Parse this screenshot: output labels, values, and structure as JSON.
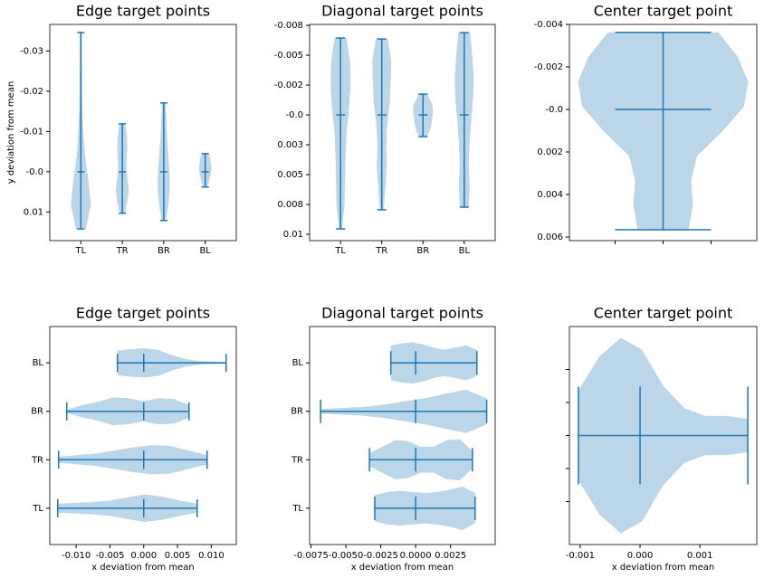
{
  "chart_data": [
    {
      "type": "violin",
      "orientation": "vertical",
      "title": "Edge target points",
      "ylabel": "y deviation from mean",
      "color": "#1f77b4",
      "categories": [
        "TL",
        "TR",
        "BR",
        "BL"
      ],
      "invert_y": true,
      "ylim": [
        -0.0366,
        0.0171
      ],
      "yticks": [
        -0.03,
        -0.02,
        -0.01,
        {
          "value": 0,
          "label": "-0.0"
        },
        0.01
      ],
      "violins": [
        {
          "min": -0.0346,
          "mean": 0,
          "max": 0.0142,
          "density": [
            0.1,
            0.1,
            0.12,
            0.15,
            0.25,
            0.4,
            0.75,
            1,
            0.5
          ]
        },
        {
          "min": -0.0119,
          "mean": 0,
          "max": 0.0103,
          "density": [
            0.3,
            0.45,
            0.5,
            0.45,
            0.4,
            0.55,
            0.65,
            0.5,
            0.25
          ]
        },
        {
          "min": -0.0171,
          "mean": 0,
          "max": 0.0121,
          "density": [
            0.2,
            0.25,
            0.3,
            0.4,
            0.5,
            0.6,
            0.6,
            0.45,
            0.2
          ]
        },
        {
          "min": -0.0045,
          "mean": 0,
          "max": 0.0038,
          "density": [
            0.3,
            0.5,
            0.55,
            0.6,
            0.6,
            0.55,
            0.45,
            0.35,
            0.2
          ]
        }
      ]
    },
    {
      "type": "violin",
      "orientation": "vertical",
      "title": "Diagonal target points",
      "color": "#1f77b4",
      "categories": [
        "TL",
        "TR",
        "BR",
        "BL"
      ],
      "invert_y": true,
      "ylim": [
        -0.00758,
        0.01053
      ],
      "yticks": [
        {
          "value": -0.0075,
          "label": "-0.008"
        },
        -0.005,
        {
          "value": -0.0025,
          "label": "-0.002"
        },
        {
          "value": 0,
          "label": "-0.0"
        },
        {
          "value": 0.0025,
          "label": "0.003"
        },
        0.005,
        {
          "value": 0.0075,
          "label": "0.008"
        },
        0.01
      ],
      "violins": [
        {
          "min": -0.00644,
          "mean": 0,
          "max": 0.00955,
          "density": [
            0.6,
            0.95,
            1,
            0.85,
            0.6,
            0.5,
            0.45,
            0.4,
            0.15
          ]
        },
        {
          "min": -0.00636,
          "mean": 0,
          "max": 0.00795,
          "density": [
            0.6,
            0.95,
            0.9,
            0.8,
            0.55,
            0.45,
            0.5,
            0.35,
            0.2
          ]
        },
        {
          "min": -0.00174,
          "mean": 0,
          "max": 0.00182,
          "density": [
            0.4,
            0.7,
            0.95,
            1,
            0.95,
            0.9,
            0.8,
            0.65,
            0.4
          ]
        },
        {
          "min": -0.00689,
          "mean": 0,
          "max": 0.00773,
          "density": [
            0.6,
            0.8,
            0.95,
            0.9,
            0.7,
            0.55,
            0.45,
            0.55,
            0.45
          ]
        }
      ]
    },
    {
      "type": "violin",
      "orientation": "vertical",
      "title": "Center target point",
      "color": "#1f77b4",
      "invert_y": true,
      "ylim": [
        -0.004,
        0.00617
      ],
      "yticks": [
        -0.004,
        -0.002,
        {
          "value": 0,
          "label": "-0.0"
        },
        0.002,
        0.004,
        0.006
      ],
      "violins": [
        {
          "min": -0.00362,
          "mean": 0,
          "max": 0.00566,
          "density": [
            0.65,
            0.88,
            1,
            0.95,
            0.7,
            0.4,
            0.33,
            0.35,
            0.3
          ]
        }
      ]
    },
    {
      "type": "violin",
      "orientation": "horizontal",
      "title": "Edge target points",
      "xlabel": "x deviation from mean",
      "color": "#1f77b4",
      "categories": [
        "TL",
        "TR",
        "BR",
        "BL"
      ],
      "xlim": [
        -0.0139,
        0.0137
      ],
      "xticks": [
        {
          "value": -0.01,
          "label": "-0.010"
        },
        -0.005,
        {
          "value": 0,
          "label": "0.000"
        },
        0.005,
        {
          "value": 0.01,
          "label": "0.010"
        }
      ],
      "violins": [
        {
          "min": -0.01273,
          "mean": 0,
          "max": 0.00791,
          "density": [
            0.3,
            0.35,
            0.4,
            0.5,
            0.7,
            0.9,
            0.75,
            0.5,
            0.3
          ]
        },
        {
          "min": -0.0126,
          "mean": 0,
          "max": 0.00938,
          "density": [
            0.2,
            0.3,
            0.4,
            0.6,
            0.8,
            0.95,
            0.9,
            0.6,
            0.3
          ]
        },
        {
          "min": -0.01139,
          "mean": 0,
          "max": 0.0067,
          "density": [
            0.1,
            0.4,
            0.6,
            0.9,
            0.85,
            0.65,
            0.85,
            0.8,
            0.4
          ]
        },
        {
          "min": -0.00389,
          "mean": 0,
          "max": 0.0122,
          "density": [
            0.8,
            0.9,
            0.95,
            0.85,
            0.5,
            0.25,
            0.12,
            0.08,
            0.05
          ]
        }
      ]
    },
    {
      "type": "violin",
      "orientation": "horizontal",
      "title": "Diagonal target points",
      "xlabel": "x deviation from mean",
      "color": "#1f77b4",
      "categories": [
        "TL",
        "TR",
        "BR",
        "BL"
      ],
      "xlim": [
        -0.0076,
        0.0057
      ],
      "xticks": [
        -0.0075,
        {
          "value": -0.005,
          "label": "-0.0050"
        },
        -0.0025,
        {
          "value": 0,
          "label": "0.0000"
        },
        0.0025
      ],
      "violins": [
        {
          "min": -0.00293,
          "mean": 0,
          "max": 0.00426,
          "density": [
            0.6,
            0.75,
            0.8,
            0.75,
            0.7,
            0.75,
            0.85,
            1,
            0.7
          ]
        },
        {
          "min": -0.00331,
          "mean": 0,
          "max": 0.00407,
          "density": [
            0.3,
            0.6,
            0.9,
            0.85,
            0.6,
            0.6,
            0.9,
            0.95,
            0.4
          ]
        },
        {
          "min": -0.00681,
          "mean": 0,
          "max": 0.00509,
          "density": [
            0.1,
            0.15,
            0.2,
            0.3,
            0.45,
            0.6,
            0.8,
            1,
            0.6
          ]
        },
        {
          "min": -0.00178,
          "mean": 0,
          "max": 0.00439,
          "density": [
            0.8,
            0.9,
            0.95,
            0.85,
            0.7,
            0.6,
            0.7,
            0.8,
            0.6
          ]
        }
      ]
    },
    {
      "type": "violin",
      "orientation": "horizontal",
      "title": "Center target point",
      "xlabel": "x deviation from mean",
      "color": "#1f77b4",
      "xlim": [
        -0.00118,
        0.00195
      ],
      "xticks": [
        -0.001,
        {
          "value": 0,
          "label": "0.000"
        },
        0.001
      ],
      "violins": [
        {
          "min": -0.00103,
          "mean": 0,
          "max": 0.0018,
          "density": [
            0.46,
            0.81,
            1,
            0.88,
            0.51,
            0.28,
            0.2,
            0.2,
            0.17
          ]
        }
      ]
    }
  ]
}
